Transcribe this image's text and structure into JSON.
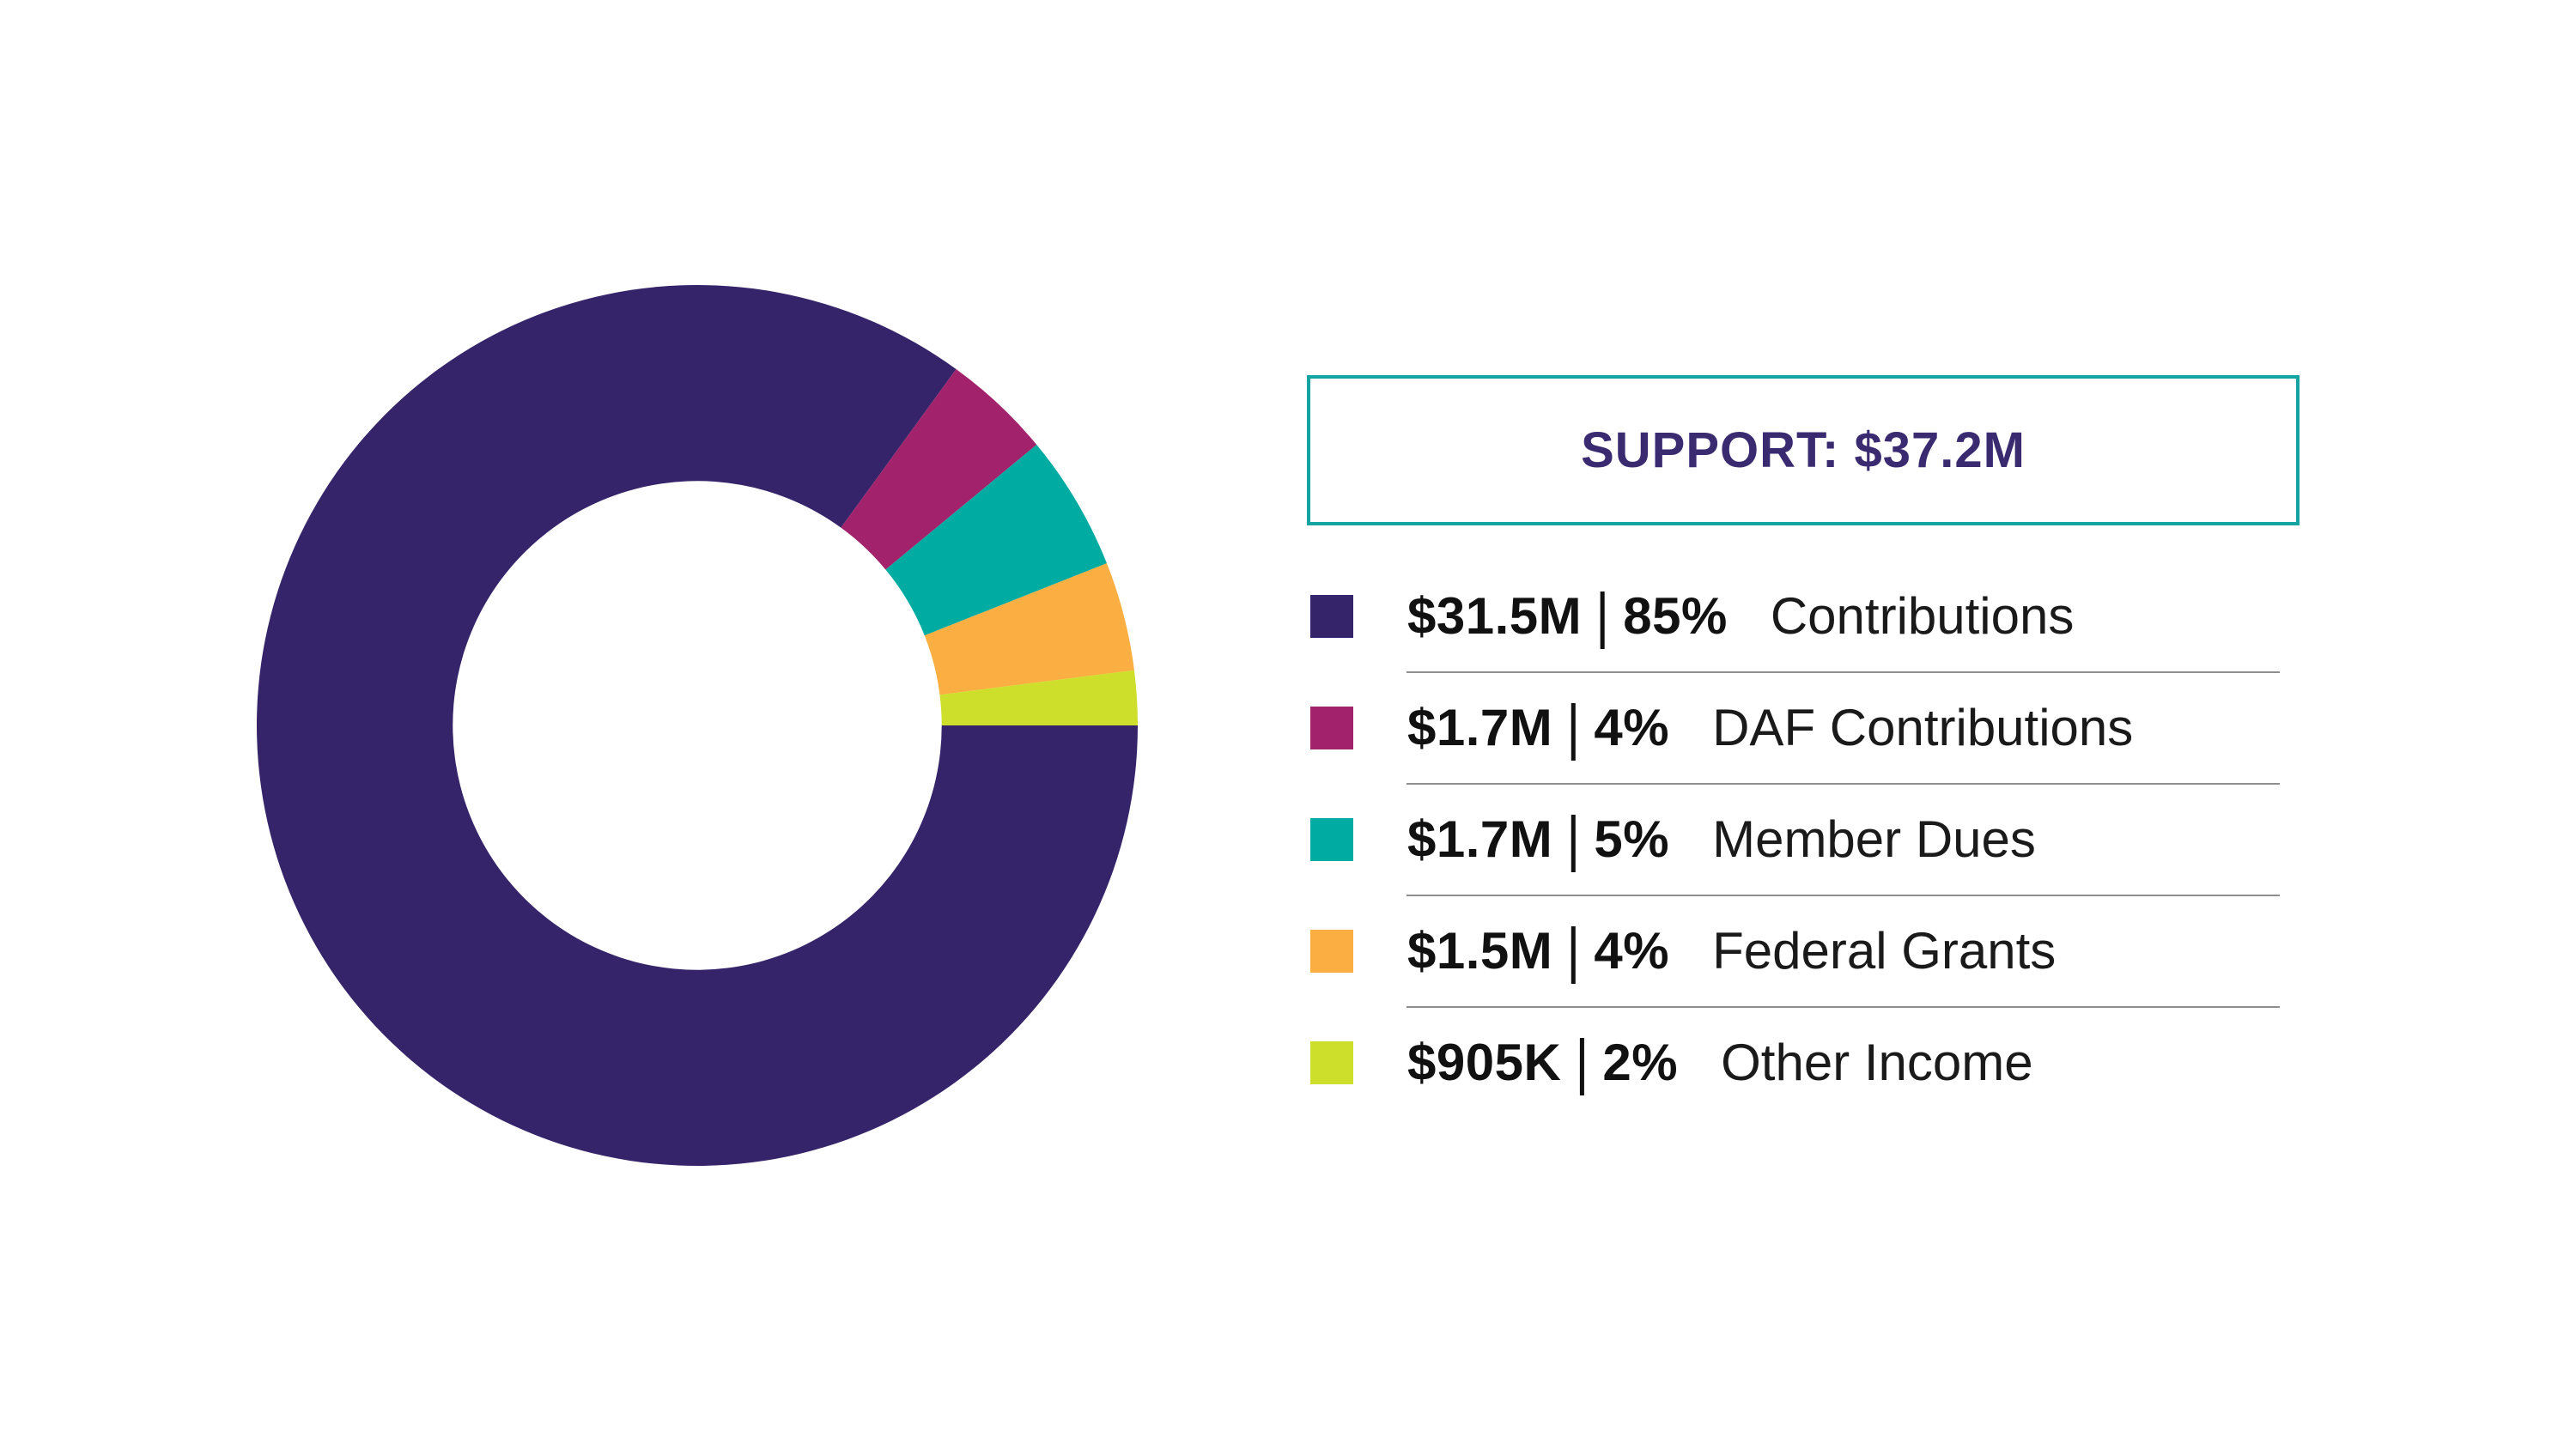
{
  "header": {
    "title": "SUPPORT: $37.2M",
    "border_color": "#14A5A3",
    "text_color": "#3A2A70"
  },
  "chart_data": {
    "type": "pie",
    "variant": "donut",
    "title": "SUPPORT: $37.2M",
    "total_text": "$37.2M",
    "legend_position": "right",
    "start_angle_deg_clockwise_from_top": 90,
    "inner_radius_ratio": 0.555,
    "separator": "|",
    "divider_color": "#8E8E8E",
    "text_color": "#111111",
    "segments": [
      {
        "label": "Contributions",
        "value_text": "$31.5M",
        "percent": 85,
        "color": "#36246B"
      },
      {
        "label": "DAF Contributions",
        "value_text": "$1.7M",
        "percent": 4,
        "color": "#A2236B"
      },
      {
        "label": "Member Dues",
        "value_text": "$1.7M",
        "percent": 5,
        "color": "#00ABA2"
      },
      {
        "label": "Federal Grants",
        "value_text": "$1.5M",
        "percent": 4,
        "color": "#FBAE42"
      },
      {
        "label": "Other Income",
        "value_text": "$905K",
        "percent": 2,
        "color": "#CDDE2B"
      }
    ]
  }
}
